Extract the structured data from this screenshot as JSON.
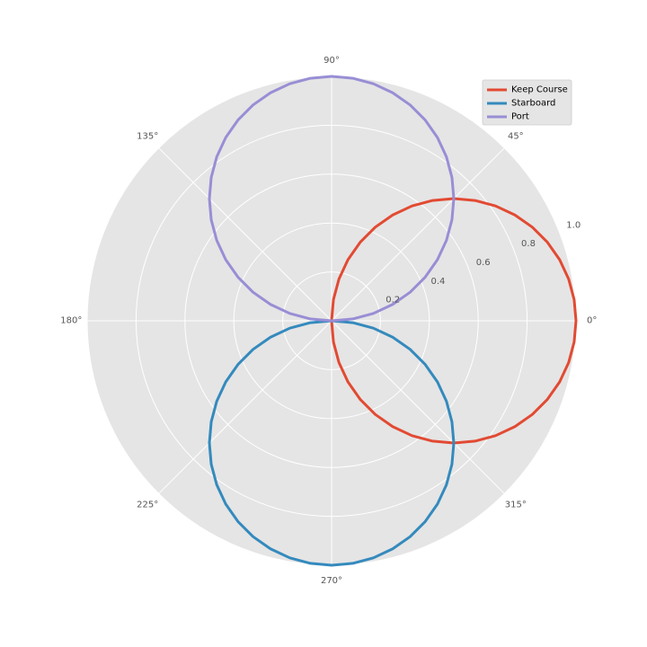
{
  "chart_data": {
    "type": "line",
    "projection": "polar",
    "title": "",
    "theta_tick_labels": [
      "0°",
      "45°",
      "90°",
      "135°",
      "180°",
      "225°",
      "270°",
      "315°"
    ],
    "r_tick_labels": [
      "0.2",
      "0.4",
      "0.6",
      "0.8",
      "1.0"
    ],
    "r_ticks": [
      0.2,
      0.4,
      0.6,
      0.8,
      1.0
    ],
    "r_range": [
      0,
      1.0
    ],
    "r_label_angle_deg": 22.5,
    "grid": true,
    "background_color": "#e5e5e5",
    "grid_color": "#ffffff",
    "legend": {
      "position": "top-right",
      "entries": [
        "Keep Course",
        "Starboard",
        "Port"
      ]
    },
    "series": [
      {
        "name": "Keep Course",
        "color": "#e24a33",
        "function": "r = max(cos(theta), 0)",
        "theta_deg": [
          -90,
          -75,
          -60,
          -45,
          -30,
          -15,
          0,
          15,
          30,
          45,
          60,
          75,
          90
        ],
        "r": [
          0.0,
          0.259,
          0.5,
          0.707,
          0.866,
          0.966,
          1.0,
          0.966,
          0.866,
          0.707,
          0.5,
          0.259,
          0.0
        ]
      },
      {
        "name": "Starboard",
        "color": "#348abd",
        "function": "r = max(-sin(theta), 0)",
        "theta_deg": [
          180,
          195,
          210,
          225,
          240,
          255,
          270,
          285,
          300,
          315,
          330,
          345,
          360
        ],
        "r": [
          0.0,
          0.259,
          0.5,
          0.707,
          0.866,
          0.966,
          1.0,
          0.966,
          0.866,
          0.707,
          0.5,
          0.259,
          0.0
        ]
      },
      {
        "name": "Port",
        "color": "#988ed5",
        "function": "r = max(sin(theta), 0)",
        "theta_deg": [
          0,
          15,
          30,
          45,
          60,
          75,
          90,
          105,
          120,
          135,
          150,
          165,
          180
        ],
        "r": [
          0.0,
          0.259,
          0.5,
          0.707,
          0.866,
          0.966,
          1.0,
          0.966,
          0.866,
          0.707,
          0.5,
          0.259,
          0.0
        ]
      }
    ]
  }
}
